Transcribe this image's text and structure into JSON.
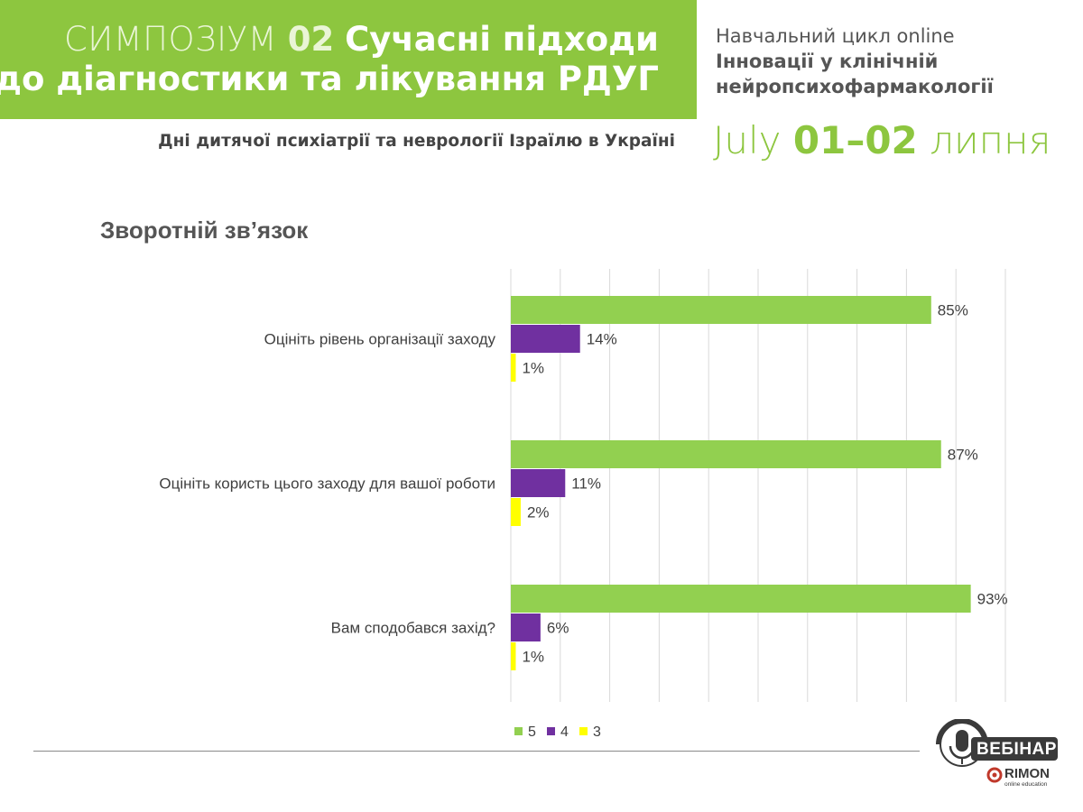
{
  "header": {
    "symposium_word": "СИМПОЗІУМ",
    "symposium_number": "02",
    "title_part1": "Сучасні підходи",
    "title_part2": "до діагностики та лікування РДУГ",
    "subtitle": "Дні дитячої психіатрії та неврології Ізраїлю в Україні"
  },
  "cycle": {
    "label": "Навчальний цикл online",
    "name_line1": "Інновації у клінічній",
    "name_line2": "нейропсихофармакології"
  },
  "date": {
    "month_en": "July",
    "range": "01–02",
    "month_ua": "липня"
  },
  "section_title": "Зворотній зв’язок",
  "chart_data": {
    "type": "bar",
    "orientation": "horizontal",
    "categories": [
      "Оцініть рівень організації заходу",
      "Оцініть користь цього заходу для вашої роботи",
      "Вам сподобався захід?"
    ],
    "series": [
      {
        "name": "5",
        "color": "#92d050",
        "values": [
          85,
          87,
          93
        ],
        "labels": [
          "85%",
          "87%",
          "93%"
        ]
      },
      {
        "name": "4",
        "color": "#7030a0",
        "values": [
          14,
          11,
          6
        ],
        "labels": [
          "14%",
          "11%",
          "6%"
        ]
      },
      {
        "name": "3",
        "color": "#ffff00",
        "values": [
          1,
          2,
          1
        ],
        "labels": [
          "1%",
          "2%",
          "1%"
        ]
      }
    ],
    "xlim": [
      0,
      100
    ],
    "grid": true,
    "legend": "bottom"
  },
  "logo": {
    "badge": "ВЕБІНАР",
    "brand": "RIMON",
    "tagline": "online education"
  },
  "colors": {
    "brand_green": "#8dc63f",
    "text_gray": "#555555"
  }
}
